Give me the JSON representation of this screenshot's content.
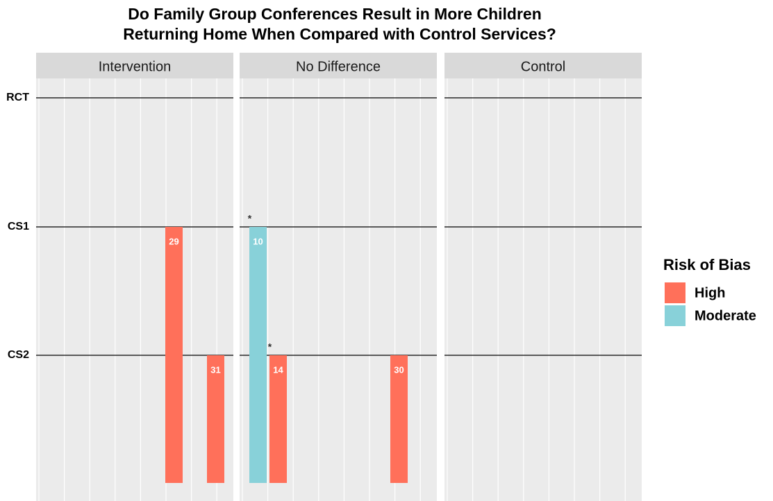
{
  "chart_data": {
    "type": "bar",
    "title": [
      "Do Family Group Conferences Result in More Children",
      "Returning Home When Compared with Control Services?"
    ],
    "panels": [
      "Intervention",
      "No Difference",
      "Control"
    ],
    "rows": [
      "RCT",
      "CS1",
      "CS2"
    ],
    "legend_title": "Risk of Bias",
    "series": [
      {
        "name": "High",
        "color": "#ff705a"
      },
      {
        "name": "Moderate",
        "color": "#88d1d9"
      }
    ],
    "bars": [
      {
        "panel": 0,
        "row": 1,
        "label": 29,
        "risk": 0
      },
      {
        "panel": 0,
        "row": 2,
        "label": 31,
        "risk": 0
      },
      {
        "panel": 1,
        "row": 1,
        "label": 10,
        "risk": 1,
        "note": "*"
      },
      {
        "panel": 1,
        "row": 2,
        "label": 14,
        "risk": 0,
        "note": "*"
      },
      {
        "panel": 1,
        "row": 2,
        "label": 30,
        "risk": 0
      }
    ]
  }
}
